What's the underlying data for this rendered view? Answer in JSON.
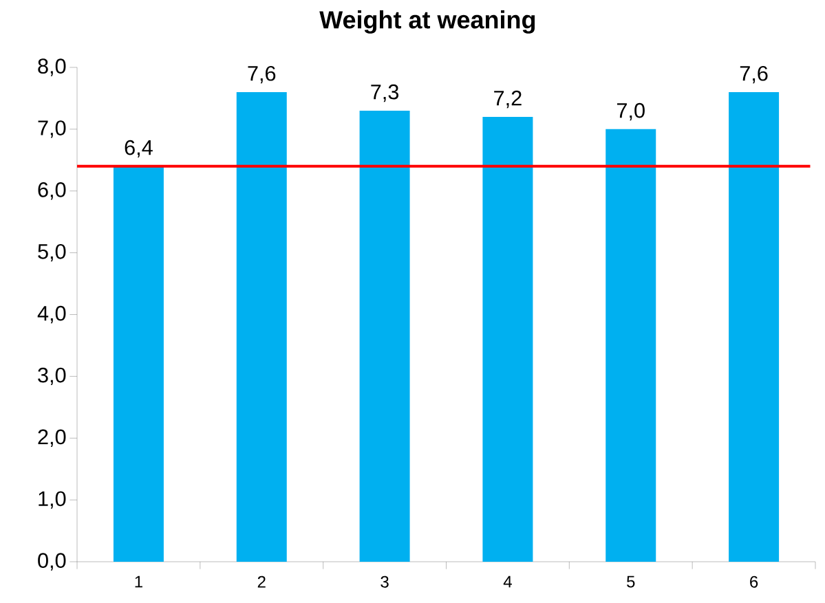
{
  "chart_data": {
    "type": "bar",
    "title": "Weight at weaning",
    "categories": [
      "1",
      "2",
      "3",
      "4",
      "5",
      "6"
    ],
    "values": [
      6.4,
      7.6,
      7.3,
      7.2,
      7.0,
      7.6
    ],
    "value_labels": [
      "6,4",
      "7,6",
      "7,3",
      "7,2",
      "7,0",
      "7,6"
    ],
    "color": "#00b0f0",
    "ylim": [
      0,
      8
    ],
    "yticks": [
      {
        "value": 0,
        "label": "0,0"
      },
      {
        "value": 1,
        "label": "1,0"
      },
      {
        "value": 2,
        "label": "2,0"
      },
      {
        "value": 3,
        "label": "3,0"
      },
      {
        "value": 4,
        "label": "4,0"
      },
      {
        "value": 5,
        "label": "5,0"
      },
      {
        "value": 6,
        "label": "6,0"
      },
      {
        "value": 7,
        "label": "7,0"
      },
      {
        "value": 8,
        "label": "8,0"
      }
    ],
    "ref_lines": [
      {
        "axis": "y",
        "value": 6.4,
        "color": "#ff0000"
      }
    ],
    "grid": false
  }
}
